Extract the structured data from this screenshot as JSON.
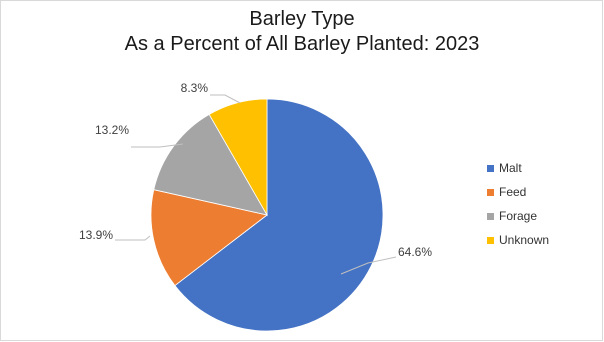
{
  "chart_data": {
    "type": "pie",
    "title": "Barley Type",
    "subtitle": "As a Percent of All Barley Planted: 2023",
    "categories": [
      "Malt",
      "Feed",
      "Forage",
      "Unknown"
    ],
    "values": [
      64.6,
      13.9,
      13.2,
      8.3
    ],
    "data_labels": [
      "64.6%",
      "13.9%",
      "13.2%",
      "8.3%"
    ],
    "colors": [
      "#4472c4",
      "#ed7d31",
      "#a5a5a5",
      "#ffc000"
    ],
    "legend_position": "right",
    "start_angle": "12 o'clock",
    "direction": "clockwise"
  }
}
